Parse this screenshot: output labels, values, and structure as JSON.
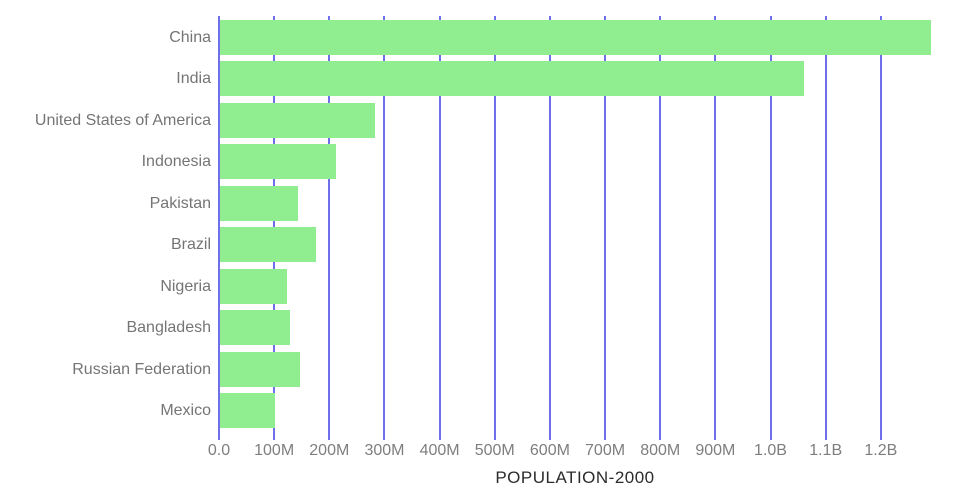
{
  "chart_data": {
    "type": "bar",
    "orientation": "horizontal",
    "title": "POPULATION-2000",
    "xlabel": "POPULATION-2000",
    "ylabel": "",
    "categories": [
      "China",
      "India",
      "United States of America",
      "Indonesia",
      "Pakistan",
      "Brazil",
      "Nigeria",
      "Bangladesh",
      "Russian Federation",
      "Mexico"
    ],
    "values_millions": [
      1291,
      1060,
      283,
      212,
      143,
      176,
      123,
      129,
      147,
      102
    ],
    "xlim_millions": [
      0,
      1291
    ],
    "x_ticks_millions": [
      0,
      100,
      200,
      300,
      400,
      500,
      600,
      700,
      800,
      900,
      1000,
      1100,
      1200
    ],
    "x_tick_labels": [
      "0.0",
      "100M",
      "200M",
      "300M",
      "400M",
      "500M",
      "600M",
      "700M",
      "800M",
      "900M",
      "1.0B",
      "1.1B",
      "1.2B"
    ],
    "grid": "vertical-gridlines-behind-bars",
    "legend": "none"
  },
  "style": {
    "bar_color": "#90EE90",
    "grid_color": "#6F6FEC",
    "category_label_color": "#757575",
    "tick_label_color": "#7E7E7E",
    "title_color": "#2B2B2B",
    "background": "#FFFFFF"
  }
}
